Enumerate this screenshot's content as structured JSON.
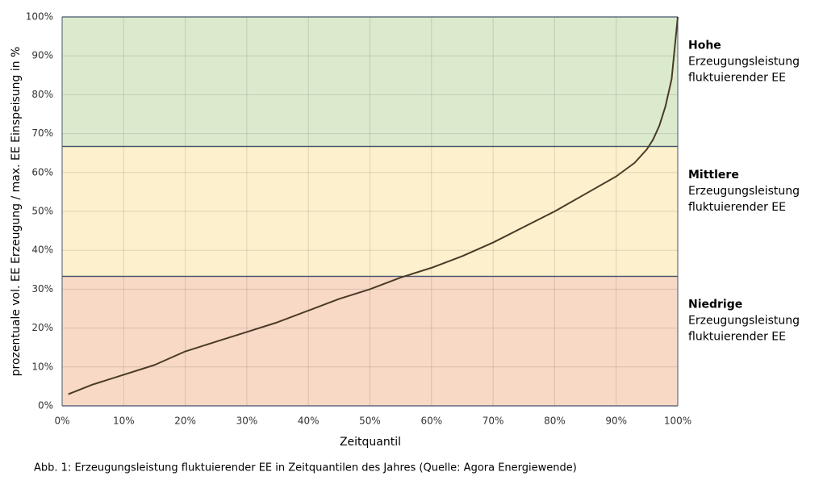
{
  "chart_data": {
    "type": "line",
    "x_label": "Zeitquantil",
    "y_label": "prozentuale vol. EE Erzeugung / max. EE Einspeisung in %",
    "x": [
      1,
      5,
      10,
      15,
      20,
      25,
      30,
      35,
      40,
      45,
      50,
      55,
      60,
      65,
      70,
      75,
      80,
      85,
      90,
      93,
      95,
      96,
      97,
      98,
      99,
      100
    ],
    "values": [
      3,
      5.5,
      8,
      10.5,
      14,
      16.5,
      19,
      21.5,
      24.5,
      27.5,
      30,
      33,
      35.5,
      38.5,
      42,
      46,
      50,
      54.5,
      59,
      62.5,
      66,
      68.5,
      72,
      77,
      84,
      100
    ],
    "color": "#4a3a28",
    "xlim": [
      0,
      100
    ],
    "ylim": [
      0,
      100
    ],
    "xticks": [
      {
        "value": 0,
        "label": "0%"
      },
      {
        "value": 10,
        "label": "10%"
      },
      {
        "value": 20,
        "label": "20%"
      },
      {
        "value": 30,
        "label": "30%"
      },
      {
        "value": 40,
        "label": "40%"
      },
      {
        "value": 50,
        "label": "50%"
      },
      {
        "value": 60,
        "label": "60%"
      },
      {
        "value": 70,
        "label": "70%"
      },
      {
        "value": 80,
        "label": "80%"
      },
      {
        "value": 90,
        "label": "90%"
      },
      {
        "value": 100,
        "label": "100%"
      }
    ],
    "yticks": [
      {
        "value": 0,
        "label": "0%"
      },
      {
        "value": 10,
        "label": "10%"
      },
      {
        "value": 20,
        "label": "20%"
      },
      {
        "value": 30,
        "label": "30%"
      },
      {
        "value": 40,
        "label": "40%"
      },
      {
        "value": 50,
        "label": "50%"
      },
      {
        "value": 60,
        "label": "60%"
      },
      {
        "value": 70,
        "label": "70%"
      },
      {
        "value": 80,
        "label": "80%"
      },
      {
        "value": 90,
        "label": "90%"
      },
      {
        "value": 100,
        "label": "100%"
      }
    ],
    "grid": true,
    "bands": [
      {
        "from": 66.7,
        "to": 100,
        "color": "#dbeacd",
        "label": "Hohe",
        "description": [
          "Erzeugungsleistung",
          "fluktuierender EE"
        ]
      },
      {
        "from": 33.3,
        "to": 66.7,
        "color": "#fdf0cc",
        "label": "Mittlere",
        "description": [
          "Erzeugungsleistung",
          "fluktuierender EE"
        ]
      },
      {
        "from": 0,
        "to": 33.3,
        "color": "#f8d9c6",
        "label": "Niedrige",
        "description": [
          "Erzeugungsleistung",
          "fluktuierender EE"
        ]
      }
    ]
  },
  "caption": "Abb. 1: Erzeugungsleistung fluktuierender EE in Zeitquantilen des Jahres (Quelle: Agora Energiewende)"
}
